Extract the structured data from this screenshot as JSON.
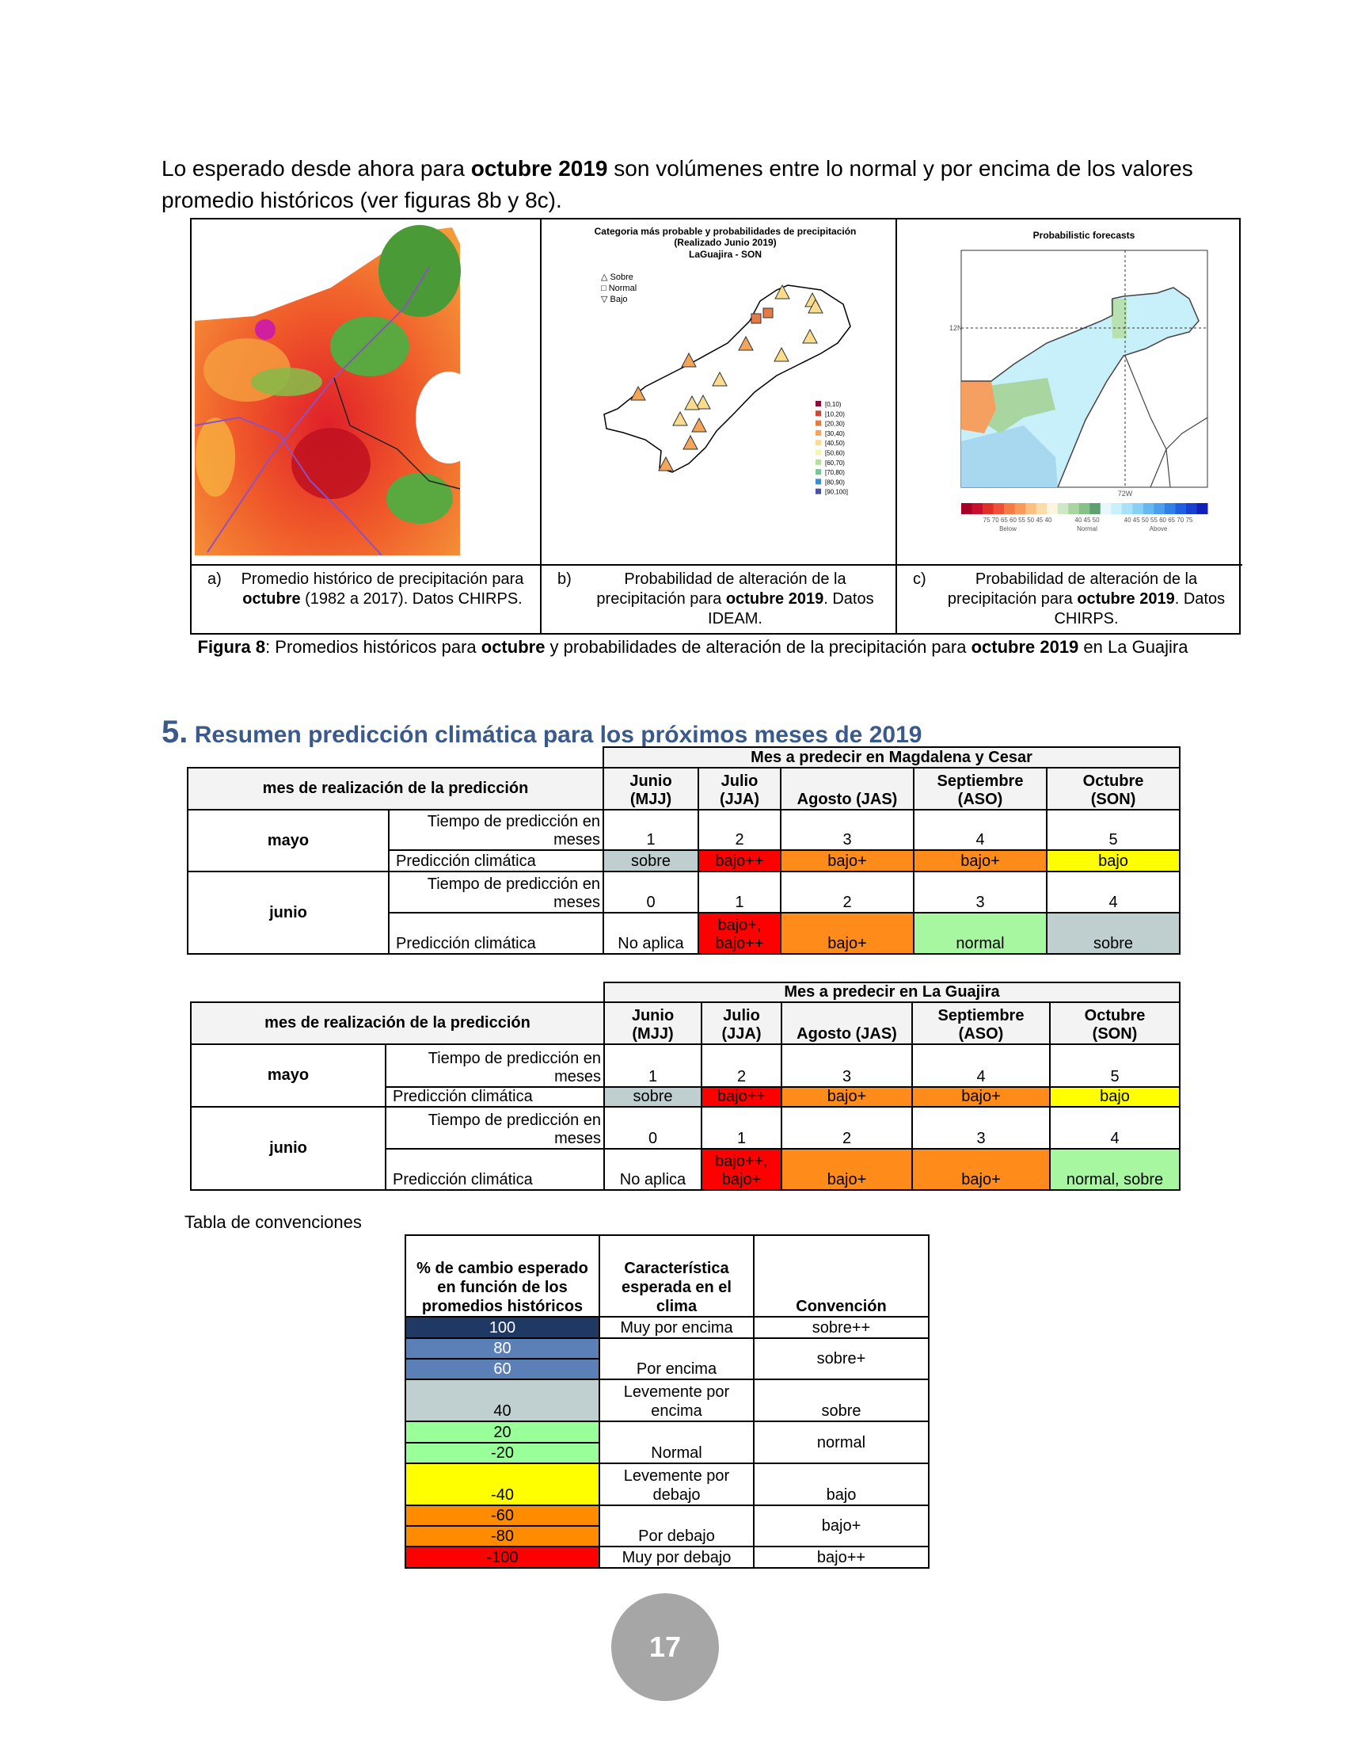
{
  "intro": {
    "p1": "Lo esperado desde ahora para ",
    "b1": "octubre 2019",
    "p2": " son volúmenes entre lo normal y por encima de los valores promedio históricos (ver figuras 8b y 8c)."
  },
  "figure": {
    "map_b": {
      "title1": "Categoria más probable y probabilidades de precipitación",
      "title2": "(Realizado Junio 2019)",
      "title3": "LaGuajira - SON",
      "legend_symbols": [
        "Sobre",
        "Normal",
        "Bajo"
      ],
      "legend_ranges": [
        "[0,10)",
        "[10,20)",
        "[20,30)",
        "[30,40)",
        "[40,50)",
        "[50,60)",
        "[60,70)",
        "[70,80)",
        "[80,90)",
        "[90,100]"
      ],
      "legend_colors": [
        "#8b0a3a",
        "#c84a3a",
        "#e57a45",
        "#f5a55a",
        "#fadc8c",
        "#f5f5b4",
        "#b9dca0",
        "#7cc39a",
        "#3c8cc8",
        "#5050a0"
      ]
    },
    "map_c": {
      "title": "Probabilistic forecasts",
      "lat_label": "12N",
      "lon_label": "72W",
      "colorbar_colors": [
        "#a50026",
        "#c8102e",
        "#e0302a",
        "#f0503a",
        "#f57a45",
        "#f99a5a",
        "#fbbf80",
        "#fcdca8",
        "#fdf5e0",
        "#cde8c5",
        "#a8d5a0",
        "#86c08a",
        "#5ea070",
        "#e6f8fc",
        "#c8f0fa",
        "#a8e2f8",
        "#88d0f4",
        "#66b8f0",
        "#4aa0ec",
        "#3080e8",
        "#2060e0",
        "#1840d0",
        "#1020b8"
      ],
      "below_ticks": "75 70 65 60 55 50 45 40",
      "normal_ticks": "40 45 50",
      "above_ticks": "40 45 50 55 60 65 70 75",
      "below": "Below",
      "normal": "Normal",
      "above": "Above"
    },
    "captions": [
      {
        "label": "a)",
        "p1": "Promedio histórico de precipitación para ",
        "b": "octubre",
        "p2": " (1982 a 2017). Datos CHIRPS."
      },
      {
        "label": "b)",
        "p1": "Probabilidad de alteración de la precipitación para ",
        "b": "octubre 2019",
        "p2": ". Datos IDEAM."
      },
      {
        "label": "c)",
        "p1": "Probabilidad de alteración de la precipitación para ",
        "b": "octubre 2019",
        "p2": ". Datos CHIRPS."
      }
    ],
    "caption": {
      "b1": "Figura 8",
      "p1": ": Promedios históricos para ",
      "b2": "octubre",
      "p2": " y probabilidades de alteración de la precipitación para ",
      "b3": "octubre 2019",
      "p3": " en La Guajira"
    }
  },
  "section": {
    "number": "5.",
    "title": "Resumen predicción climática para los próximos meses de 2019"
  },
  "tables": [
    {
      "title": "Mes a predecir en Magdalena y Cesar",
      "header_left": "mes de realización de la predicción",
      "months": [
        {
          "name": "Junio",
          "period": "(MJJ)"
        },
        {
          "name": "Julio",
          "period": "(JJA)"
        },
        {
          "name": "Agosto (JAS)",
          "period": ""
        },
        {
          "name": "Septiembre",
          "period": "(ASO)"
        },
        {
          "name": "Octubre",
          "period": "(SON)"
        }
      ],
      "rows": [
        {
          "month": "mayo",
          "lead_label": "Tiempo de predicción en meses",
          "leads": [
            "1",
            "2",
            "3",
            "4",
            "5"
          ],
          "pred_label": "Predicción climática",
          "preds": [
            {
              "text": "sobre",
              "color": "#bfcfcf"
            },
            {
              "text": "bajo++",
              "color": "#ff0000"
            },
            {
              "text": "bajo+",
              "color": "#ff8c1a"
            },
            {
              "text": "bajo+",
              "color": "#ff8c1a"
            },
            {
              "text": "bajo",
              "color": "#ffff00"
            }
          ]
        },
        {
          "month": "junio",
          "lead_label": "Tiempo de predicción en meses",
          "leads": [
            "0",
            "1",
            "2",
            "3",
            "4"
          ],
          "pred_label": "Predicción climática",
          "preds": [
            {
              "text": "No aplica",
              "color": "#ffffff"
            },
            {
              "text": "bajo+, bajo++",
              "color": "#ff0000"
            },
            {
              "text": "bajo+",
              "color": "#ff8c1a"
            },
            {
              "text": "normal",
              "color": "#a6f7a0"
            },
            {
              "text": "sobre",
              "color": "#bfcfcf"
            }
          ]
        }
      ]
    },
    {
      "title": "Mes a predecir en La Guajira",
      "header_left": "mes de realización de la predicción",
      "months": [
        {
          "name": "Junio",
          "period": "(MJJ)"
        },
        {
          "name": "Julio",
          "period": "(JJA)"
        },
        {
          "name": "Agosto (JAS)",
          "period": ""
        },
        {
          "name": "Septiembre",
          "period": "(ASO)"
        },
        {
          "name": "Octubre",
          "period": "(SON)"
        }
      ],
      "rows": [
        {
          "month": "mayo",
          "lead_label": "Tiempo de predicción en meses",
          "leads": [
            "1",
            "2",
            "3",
            "4",
            "5"
          ],
          "pred_label": "Predicción climática",
          "preds": [
            {
              "text": "sobre",
              "color": "#bfcfcf"
            },
            {
              "text": "bajo++",
              "color": "#ff0000"
            },
            {
              "text": "bajo+",
              "color": "#ff8c1a"
            },
            {
              "text": "bajo+",
              "color": "#ff8c1a"
            },
            {
              "text": "bajo",
              "color": "#ffff00"
            }
          ]
        },
        {
          "month": "junio",
          "lead_label": "Tiempo de predicción en meses",
          "leads": [
            "0",
            "1",
            "2",
            "3",
            "4"
          ],
          "pred_label": "Predicción climática",
          "preds": [
            {
              "text": "No aplica",
              "color": "#ffffff"
            },
            {
              "text": "bajo++, bajo+",
              "color": "#ff0000"
            },
            {
              "text": "bajo+",
              "color": "#ff8c1a"
            },
            {
              "text": "bajo+",
              "color": "#ff8c1a"
            },
            {
              "text": "normal, sobre",
              "color": "#a6f7a0"
            }
          ]
        }
      ]
    }
  ],
  "conventions": {
    "title": "Tabla de convenciones",
    "headers": [
      "% de cambio esperado en función de los promedios históricos",
      "Característica esperada en el clima",
      "Convención"
    ],
    "values": [
      {
        "v": "100",
        "color": "#1f3864",
        "fg": "#ffffff"
      },
      {
        "v": "80",
        "color": "#5b80b8",
        "fg": "#ffffff"
      },
      {
        "v": "60",
        "color": "#5b80b8",
        "fg": "#ffffff"
      },
      {
        "v": "40",
        "color": "#c0cfcf",
        "fg": "#000000"
      },
      {
        "v": "20",
        "color": "#99ff99",
        "fg": "#000000"
      },
      {
        "v": "-20",
        "color": "#99ff99",
        "fg": "#000000"
      },
      {
        "v": "-40",
        "color": "#ffff00",
        "fg": "#000000"
      },
      {
        "v": "-60",
        "color": "#ff8c00",
        "fg": "#000000"
      },
      {
        "v": "-80",
        "color": "#ff8c00",
        "fg": "#000000"
      },
      {
        "v": "-100",
        "color": "#ff0000",
        "fg": "#000000"
      }
    ],
    "groups": [
      {
        "rows": 1,
        "desc": "Muy por encima",
        "conv": "sobre++"
      },
      {
        "rows": 2,
        "desc": "Por encima",
        "conv": "sobre+"
      },
      {
        "rows": 1,
        "desc": "Levemente por encima",
        "conv": "sobre"
      },
      {
        "rows": 2,
        "desc": "Normal",
        "conv": "normal"
      },
      {
        "rows": 1,
        "desc": "Levemente por debajo",
        "conv": "bajo"
      },
      {
        "rows": 2,
        "desc": "Por debajo",
        "conv": "bajo+"
      },
      {
        "rows": 1,
        "desc": "Muy por debajo",
        "conv": "bajo++"
      }
    ]
  },
  "page_number": "17"
}
